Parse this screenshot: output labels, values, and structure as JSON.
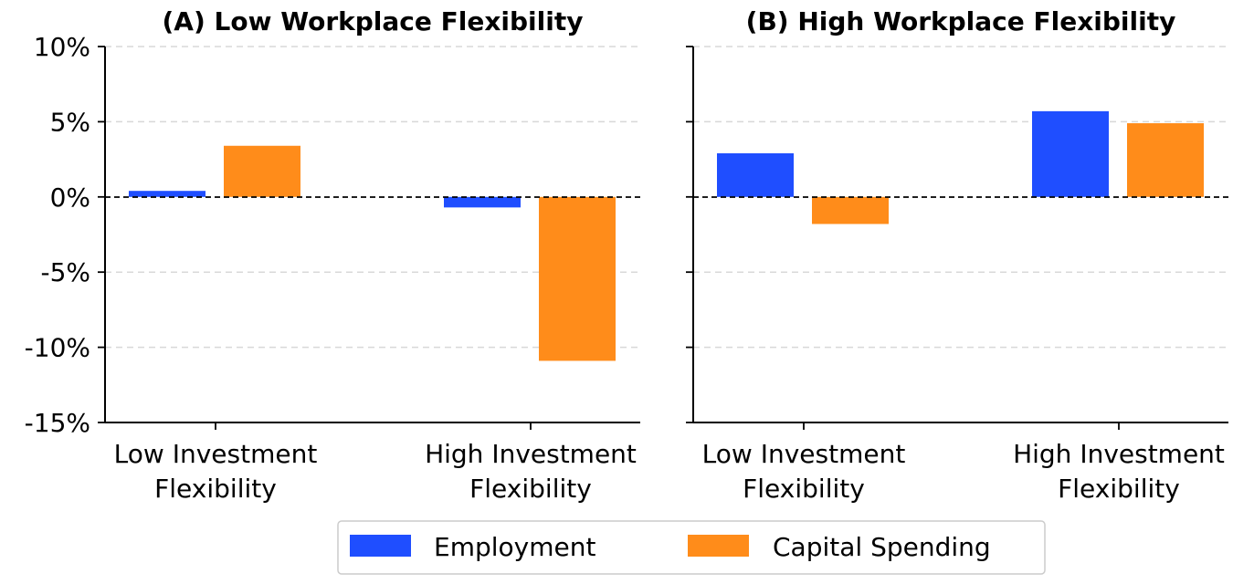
{
  "colors": {
    "employment": "#1f4eff",
    "capital": "#ff8c1a",
    "grid": "#d8d8d8"
  },
  "chart_data": [
    {
      "type": "bar",
      "title": "(A) Low Workplace Flexibility",
      "categories": [
        [
          "Low Investment",
          "Flexibility"
        ],
        [
          "High Investment",
          "Flexibility"
        ]
      ],
      "series": [
        {
          "name": "Employment",
          "values": [
            0.4,
            -0.7
          ]
        },
        {
          "name": "Capital Spending",
          "values": [
            3.4,
            -10.9
          ]
        }
      ],
      "ylim": [
        -15,
        10
      ],
      "yticks": [
        "10%",
        "5%",
        "0%",
        "-5%",
        "-10%",
        "-15%"
      ],
      "grid": "horizontal dashed",
      "zero_line": "dashed"
    },
    {
      "type": "bar",
      "title": "(B) High Workplace Flexibility",
      "categories": [
        [
          "Low Investment",
          "Flexibility"
        ],
        [
          "High Investment",
          "Flexibility"
        ]
      ],
      "series": [
        {
          "name": "Employment",
          "values": [
            2.9,
            5.7
          ]
        },
        {
          "name": "Capital Spending",
          "values": [
            -1.8,
            4.9
          ]
        }
      ],
      "ylim": [
        -15,
        10
      ],
      "grid": "horizontal dashed",
      "zero_line": "dashed"
    }
  ],
  "legend": {
    "placement": "bottom-center",
    "items": [
      {
        "label": "Employment"
      },
      {
        "label": "Capital Spending"
      }
    ]
  }
}
